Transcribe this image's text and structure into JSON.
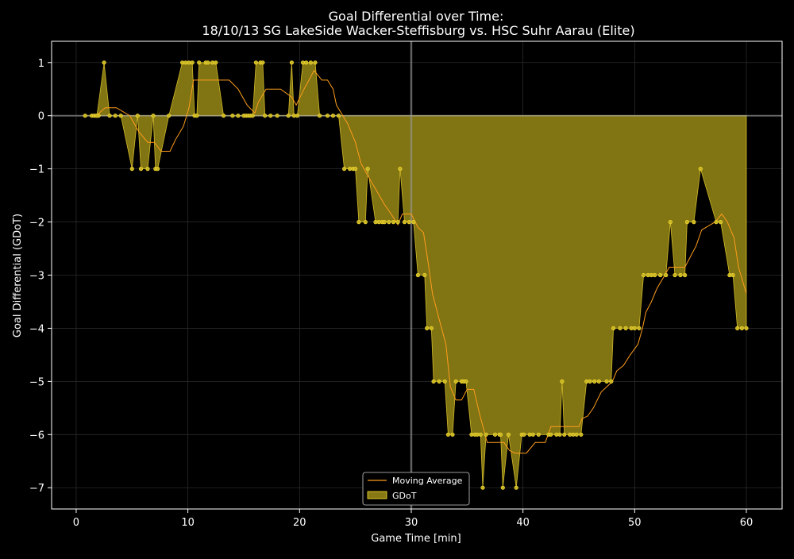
{
  "chart_data": {
    "type": "area",
    "title_line1": "Goal Differential over Time:",
    "title_line2": "18/10/13 SG LakeSide Wacker-Steffisburg  vs.  HSC Suhr Aarau (Elite)",
    "xlabel": "Game Time [min]",
    "ylabel": "Goal Differential (GDoT)",
    "xlim": [
      -2.2,
      63.2
    ],
    "ylim": [
      -7.4,
      1.4
    ],
    "xticks": [
      0,
      10,
      20,
      30,
      40,
      50,
      60
    ],
    "yticks": [
      1,
      0,
      -1,
      -2,
      -3,
      -4,
      -5,
      -6,
      -7
    ],
    "grid": true,
    "vline_x": 30,
    "hline_y": 0,
    "legend_position": "bottom-center",
    "series": [
      {
        "name": "GDoT",
        "kind": "area",
        "color": "#ffe033",
        "points": [
          [
            0.8,
            0
          ],
          [
            1.4,
            0
          ],
          [
            1.6,
            0
          ],
          [
            1.8,
            0
          ],
          [
            2.0,
            0
          ],
          [
            1.85,
            0
          ],
          [
            2.5,
            1
          ],
          [
            3.0,
            0
          ],
          [
            3.5,
            0
          ],
          [
            4.0,
            0
          ],
          [
            5.0,
            -1
          ],
          [
            5.5,
            0
          ],
          [
            5.8,
            -1
          ],
          [
            6.4,
            -1
          ],
          [
            6.9,
            0
          ],
          [
            7.1,
            -1
          ],
          [
            7.3,
            -1
          ],
          [
            8.3,
            0
          ],
          [
            9.5,
            1
          ],
          [
            9.8,
            1
          ],
          [
            10.1,
            1
          ],
          [
            10.4,
            1
          ],
          [
            10.6,
            0
          ],
          [
            10.8,
            0
          ],
          [
            11.0,
            1
          ],
          [
            11.6,
            1
          ],
          [
            11.8,
            1
          ],
          [
            12.2,
            1
          ],
          [
            12.5,
            1
          ],
          [
            13.2,
            0
          ],
          [
            14.0,
            0
          ],
          [
            14.5,
            0
          ],
          [
            15.0,
            0
          ],
          [
            15.2,
            0
          ],
          [
            15.4,
            0
          ],
          [
            15.6,
            0
          ],
          [
            15.8,
            0
          ],
          [
            16.1,
            1
          ],
          [
            16.5,
            1
          ],
          [
            16.7,
            1
          ],
          [
            16.9,
            0
          ],
          [
            17.4,
            0
          ],
          [
            18.0,
            0
          ],
          [
            19.0,
            0
          ],
          [
            19.3,
            1
          ],
          [
            19.5,
            0
          ],
          [
            19.8,
            0
          ],
          [
            20.3,
            1
          ],
          [
            20.6,
            1
          ],
          [
            21.0,
            1
          ],
          [
            21.4,
            1
          ],
          [
            21.8,
            0
          ],
          [
            22.5,
            0
          ],
          [
            23.0,
            0
          ],
          [
            23.5,
            0
          ],
          [
            24.0,
            -1
          ],
          [
            24.5,
            -1
          ],
          [
            24.8,
            -1
          ],
          [
            25.0,
            -1
          ],
          [
            25.3,
            -2
          ],
          [
            25.9,
            -2
          ],
          [
            26.1,
            -1
          ],
          [
            26.8,
            -2
          ],
          [
            27.1,
            -2
          ],
          [
            27.4,
            -2
          ],
          [
            27.6,
            -2
          ],
          [
            28.0,
            -2
          ],
          [
            28.4,
            -2
          ],
          [
            28.8,
            -2
          ],
          [
            29.0,
            -1
          ],
          [
            29.4,
            -2
          ],
          [
            29.8,
            -2
          ],
          [
            30.2,
            -2
          ],
          [
            30.6,
            -3
          ],
          [
            31.2,
            -3
          ],
          [
            31.4,
            -4
          ],
          [
            31.8,
            -4
          ],
          [
            32.0,
            -5
          ],
          [
            32.5,
            -5
          ],
          [
            33.0,
            -5
          ],
          [
            33.3,
            -6
          ],
          [
            33.7,
            -6
          ],
          [
            34.0,
            -5
          ],
          [
            34.5,
            -5
          ],
          [
            34.7,
            -5
          ],
          [
            34.9,
            -5
          ],
          [
            35.4,
            -6
          ],
          [
            35.7,
            -6
          ],
          [
            35.9,
            -6
          ],
          [
            36.2,
            -6
          ],
          [
            36.4,
            -7
          ],
          [
            36.7,
            -6
          ],
          [
            37.5,
            -6
          ],
          [
            37.9,
            -6
          ],
          [
            38.0,
            -6
          ],
          [
            38.2,
            -7
          ],
          [
            38.7,
            -6
          ],
          [
            39.4,
            -7
          ],
          [
            39.9,
            -6
          ],
          [
            40.1,
            -6
          ],
          [
            40.6,
            -6
          ],
          [
            40.9,
            -6
          ],
          [
            41.4,
            -6
          ],
          [
            42.3,
            -6
          ],
          [
            42.5,
            -6
          ],
          [
            43.0,
            -6
          ],
          [
            43.3,
            -6
          ],
          [
            43.5,
            -5
          ],
          [
            43.7,
            -6
          ],
          [
            44.2,
            -6
          ],
          [
            44.5,
            -6
          ],
          [
            44.8,
            -6
          ],
          [
            45.2,
            -6
          ],
          [
            45.7,
            -5
          ],
          [
            46.0,
            -5
          ],
          [
            46.4,
            -5
          ],
          [
            46.8,
            -5
          ],
          [
            47.5,
            -5
          ],
          [
            47.9,
            -5
          ],
          [
            48.1,
            -4
          ],
          [
            48.7,
            -4
          ],
          [
            49.2,
            -4
          ],
          [
            49.7,
            -4
          ],
          [
            50.0,
            -4
          ],
          [
            50.4,
            -4
          ],
          [
            50.8,
            -3
          ],
          [
            51.2,
            -3
          ],
          [
            51.5,
            -3
          ],
          [
            51.8,
            -3
          ],
          [
            52.3,
            -3
          ],
          [
            52.8,
            -3
          ],
          [
            53.2,
            -2
          ],
          [
            53.6,
            -3
          ],
          [
            54.1,
            -3
          ],
          [
            54.5,
            -3
          ],
          [
            54.7,
            -2
          ],
          [
            55.3,
            -2
          ],
          [
            55.9,
            -1
          ],
          [
            57.3,
            -2
          ],
          [
            57.7,
            -2
          ],
          [
            58.5,
            -3
          ],
          [
            58.8,
            -3
          ],
          [
            59.2,
            -4
          ],
          [
            59.6,
            -4
          ],
          [
            60.0,
            -4
          ]
        ]
      },
      {
        "name": "Moving Average",
        "kind": "line",
        "color": "#ff9d1c",
        "points": [
          [
            1.8,
            0
          ],
          [
            2.6,
            0.15
          ],
          [
            3.6,
            0.15
          ],
          [
            4.8,
            0
          ],
          [
            5.6,
            -0.3
          ],
          [
            6.4,
            -0.5
          ],
          [
            7.0,
            -0.5
          ],
          [
            7.6,
            -0.67
          ],
          [
            8.4,
            -0.67
          ],
          [
            8.9,
            -0.45
          ],
          [
            9.6,
            -0.2
          ],
          [
            10.1,
            0.15
          ],
          [
            10.5,
            0.67
          ],
          [
            13.7,
            0.67
          ],
          [
            14.5,
            0.5
          ],
          [
            15.3,
            0.2
          ],
          [
            16.0,
            0.05
          ],
          [
            16.3,
            0.25
          ],
          [
            17.0,
            0.5
          ],
          [
            18.3,
            0.5
          ],
          [
            19.3,
            0.35
          ],
          [
            19.7,
            0.2
          ],
          [
            20.4,
            0.5
          ],
          [
            21.3,
            0.85
          ],
          [
            22.0,
            0.67
          ],
          [
            22.5,
            0.67
          ],
          [
            23.0,
            0.5
          ],
          [
            23.3,
            0.2
          ],
          [
            24.3,
            -0.15
          ],
          [
            25.0,
            -0.5
          ],
          [
            25.5,
            -0.9
          ],
          [
            26.3,
            -1.2
          ],
          [
            27.0,
            -1.45
          ],
          [
            27.6,
            -1.67
          ],
          [
            28.2,
            -1.85
          ],
          [
            28.8,
            -2.05
          ],
          [
            29.2,
            -1.85
          ],
          [
            30.0,
            -1.85
          ],
          [
            30.6,
            -2.1
          ],
          [
            31.1,
            -2.2
          ],
          [
            31.5,
            -2.75
          ],
          [
            31.9,
            -3.35
          ],
          [
            32.4,
            -3.75
          ],
          [
            33.1,
            -4.3
          ],
          [
            33.5,
            -5.1
          ],
          [
            34.0,
            -5.35
          ],
          [
            34.5,
            -5.35
          ],
          [
            35.0,
            -5.15
          ],
          [
            35.6,
            -5.15
          ],
          [
            36.1,
            -5.6
          ],
          [
            36.8,
            -6.15
          ],
          [
            37.5,
            -6.15
          ],
          [
            38.3,
            -6.15
          ],
          [
            38.8,
            -6.3
          ],
          [
            39.3,
            -6.35
          ],
          [
            40.3,
            -6.35
          ],
          [
            41.1,
            -6.15
          ],
          [
            42.0,
            -6.15
          ],
          [
            42.5,
            -5.85
          ],
          [
            45.0,
            -5.85
          ],
          [
            45.3,
            -5.7
          ],
          [
            45.8,
            -5.65
          ],
          [
            46.3,
            -5.5
          ],
          [
            47.0,
            -5.2
          ],
          [
            48.0,
            -5.0
          ],
          [
            48.4,
            -4.8
          ],
          [
            49.0,
            -4.7
          ],
          [
            49.6,
            -4.5
          ],
          [
            50.3,
            -4.3
          ],
          [
            50.7,
            -4.0
          ],
          [
            51.0,
            -3.7
          ],
          [
            51.5,
            -3.5
          ],
          [
            52.0,
            -3.25
          ],
          [
            52.7,
            -3.0
          ],
          [
            53.1,
            -2.85
          ],
          [
            54.5,
            -2.85
          ],
          [
            55.0,
            -2.65
          ],
          [
            55.5,
            -2.45
          ],
          [
            56.0,
            -2.15
          ],
          [
            57.2,
            -2.0
          ],
          [
            57.8,
            -1.85
          ],
          [
            58.3,
            -2.0
          ],
          [
            58.9,
            -2.3
          ],
          [
            59.3,
            -2.85
          ],
          [
            60.0,
            -3.35
          ]
        ]
      }
    ]
  }
}
